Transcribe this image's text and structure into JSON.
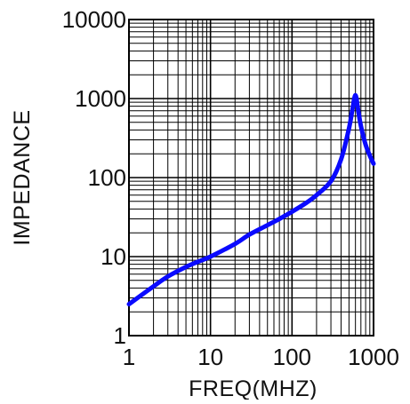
{
  "chart_data": {
    "type": "line",
    "title": "",
    "xlabel": "FREQ(MHZ)",
    "ylabel": "IMPEDANCE",
    "xscale": "log",
    "yscale": "log",
    "xlim": [
      1,
      1000
    ],
    "ylim": [
      1,
      10000
    ],
    "grid": true,
    "x_ticks": [
      {
        "value": 1,
        "label": "1"
      },
      {
        "value": 10,
        "label": "10"
      },
      {
        "value": 100,
        "label": "100"
      },
      {
        "value": 1000,
        "label": "1000"
      }
    ],
    "y_ticks": [
      {
        "value": 1,
        "label": "1"
      },
      {
        "value": 10,
        "label": "10"
      },
      {
        "value": 100,
        "label": "100"
      },
      {
        "value": 1000,
        "label": "1000"
      },
      {
        "value": 10000,
        "label": "10000"
      }
    ],
    "series": [
      {
        "color": "#0a0aff",
        "points": [
          [
            1,
            2.5
          ],
          [
            2,
            4.2
          ],
          [
            3,
            5.6
          ],
          [
            5,
            7.4
          ],
          [
            7,
            8.6
          ],
          [
            10,
            10
          ],
          [
            20,
            14.5
          ],
          [
            30,
            19
          ],
          [
            50,
            25
          ],
          [
            70,
            30
          ],
          [
            100,
            37
          ],
          [
            150,
            48
          ],
          [
            200,
            60
          ],
          [
            300,
            90
          ],
          [
            400,
            170
          ],
          [
            500,
            420
          ],
          [
            550,
            720
          ],
          [
            600,
            1100
          ],
          [
            650,
            700
          ],
          [
            700,
            450
          ],
          [
            800,
            260
          ],
          [
            900,
            190
          ],
          [
            1000,
            150
          ]
        ]
      }
    ]
  }
}
